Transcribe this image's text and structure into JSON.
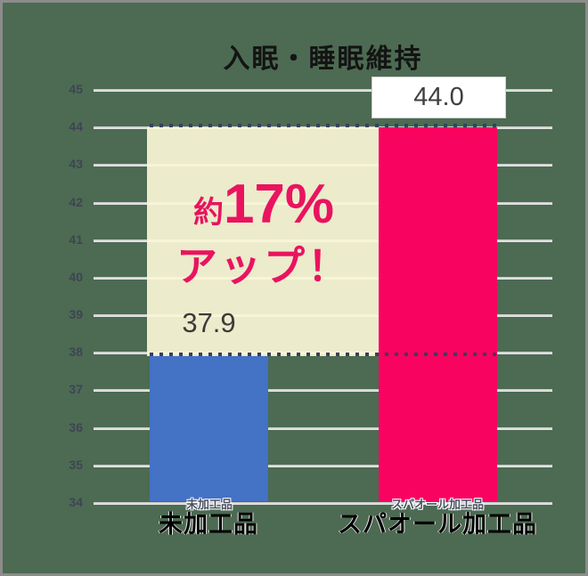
{
  "page": {
    "background_color": "#4c6b52",
    "border_color": "#8c8c8c"
  },
  "chart_data": {
    "type": "bar",
    "title": "入眠・睡眠維持",
    "categories": [
      "未加工品",
      "スパオール加工品"
    ],
    "values": [
      37.9,
      44.0
    ],
    "value_labels": [
      "37.9",
      "44.0"
    ],
    "bar_colors": [
      "#4472c4",
      "#f90361"
    ],
    "ylim": [
      34,
      45
    ],
    "yticks": [
      34,
      35,
      36,
      37,
      38,
      39,
      40,
      41,
      42,
      43,
      44,
      45
    ],
    "grid": true,
    "legend_position": "none",
    "reference_lines": [
      44.0,
      37.9
    ],
    "annotation": {
      "prefix": "約",
      "big": "17%",
      "line2": "アップ！",
      "full_text": "約17%アップ！",
      "text_color": "#ea135f",
      "box_color": "#faf6d7"
    }
  }
}
